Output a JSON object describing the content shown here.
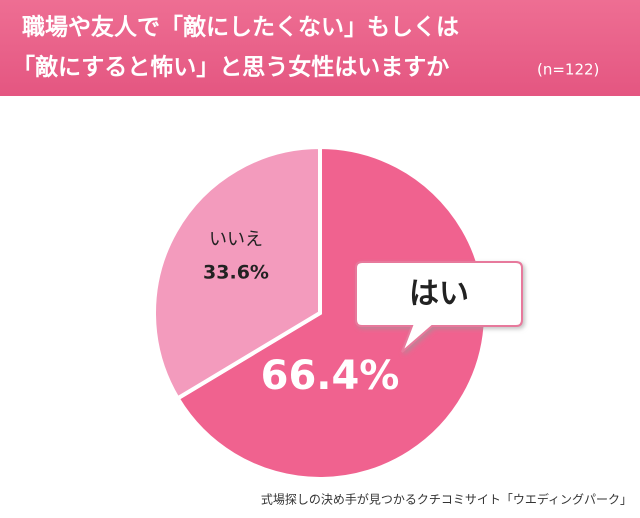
{
  "chart_data": {
    "type": "pie",
    "title": [
      "職場や友人で「敵にしたくない」もしくは",
      "「敵にすると怖い」と思う女性はいますか"
    ],
    "note": "(n=122)",
    "categories": [
      "はい",
      "いいえ"
    ],
    "values": [
      66.4,
      33.6
    ],
    "value_labels": [
      "66.4%",
      "33.6%"
    ],
    "colors": [
      "#f0628f",
      "#f39bbd"
    ],
    "source": "式場探しの決め手が見つかるクチコミサイト「ウエディングパーク」"
  }
}
